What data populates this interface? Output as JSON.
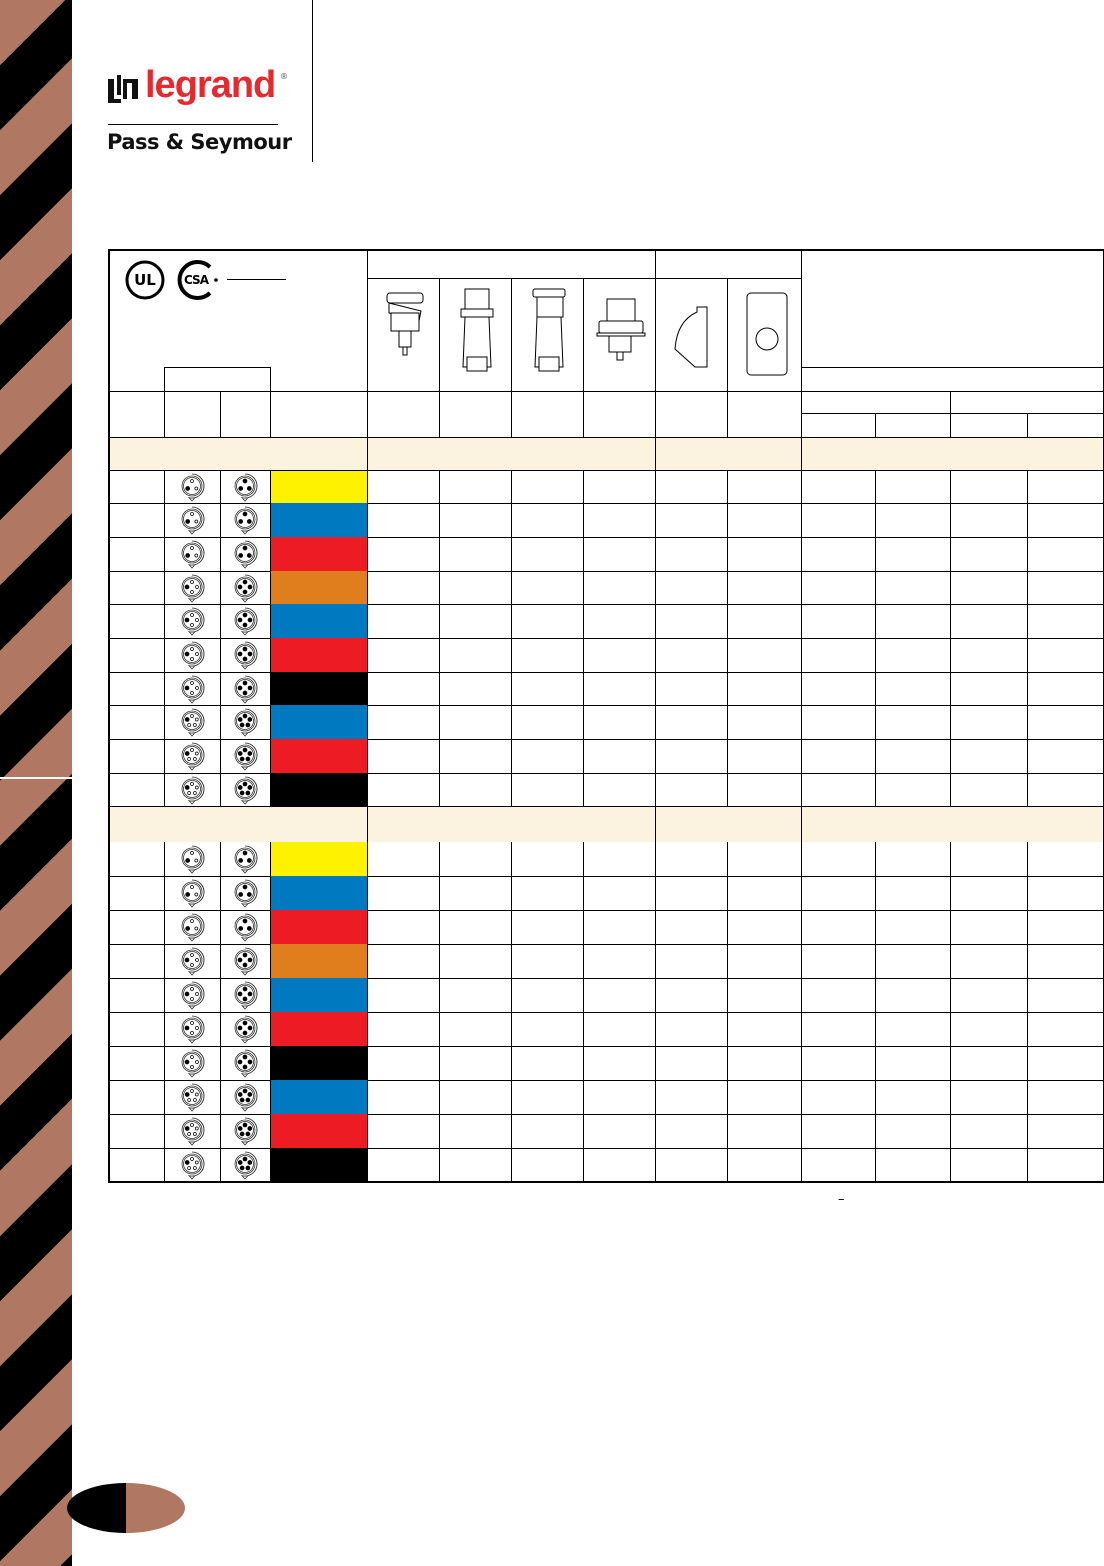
{
  "brand": {
    "logo_text": "legrand",
    "registered": "®",
    "sub_brand": "Pass & Seymour"
  },
  "certifications": [
    "UL",
    "CSA"
  ],
  "product_images": [
    "connector-body-angled",
    "plug",
    "connector",
    "inlet",
    "weatherproof-cover",
    "mounting-box"
  ],
  "colors": {
    "yellow": "#fff200",
    "blue": "#0079c1",
    "red": "#ed1c24",
    "orange": "#e07e1e",
    "black": "#000000",
    "band": "#fbf3df",
    "stripe_brown": "#b07862"
  },
  "sections": [
    {
      "rows": [
        {
          "pins": 3,
          "color": "yellow"
        },
        {
          "pins": 3,
          "color": "blue"
        },
        {
          "pins": 3,
          "color": "red"
        },
        {
          "pins": 4,
          "color": "orange"
        },
        {
          "pins": 4,
          "color": "blue"
        },
        {
          "pins": 4,
          "color": "red"
        },
        {
          "pins": 4,
          "color": "black"
        },
        {
          "pins": 5,
          "color": "blue"
        },
        {
          "pins": 5,
          "color": "red"
        },
        {
          "pins": 5,
          "color": "black"
        }
      ]
    },
    {
      "rows": [
        {
          "pins": 3,
          "color": "yellow"
        },
        {
          "pins": 3,
          "color": "blue"
        },
        {
          "pins": 3,
          "color": "red"
        },
        {
          "pins": 4,
          "color": "orange"
        },
        {
          "pins": 4,
          "color": "blue"
        },
        {
          "pins": 4,
          "color": "red"
        },
        {
          "pins": 4,
          "color": "black"
        },
        {
          "pins": 5,
          "color": "blue"
        },
        {
          "pins": 5,
          "color": "red"
        },
        {
          "pins": 5,
          "color": "black"
        }
      ]
    }
  ],
  "footnote_mark": "–"
}
